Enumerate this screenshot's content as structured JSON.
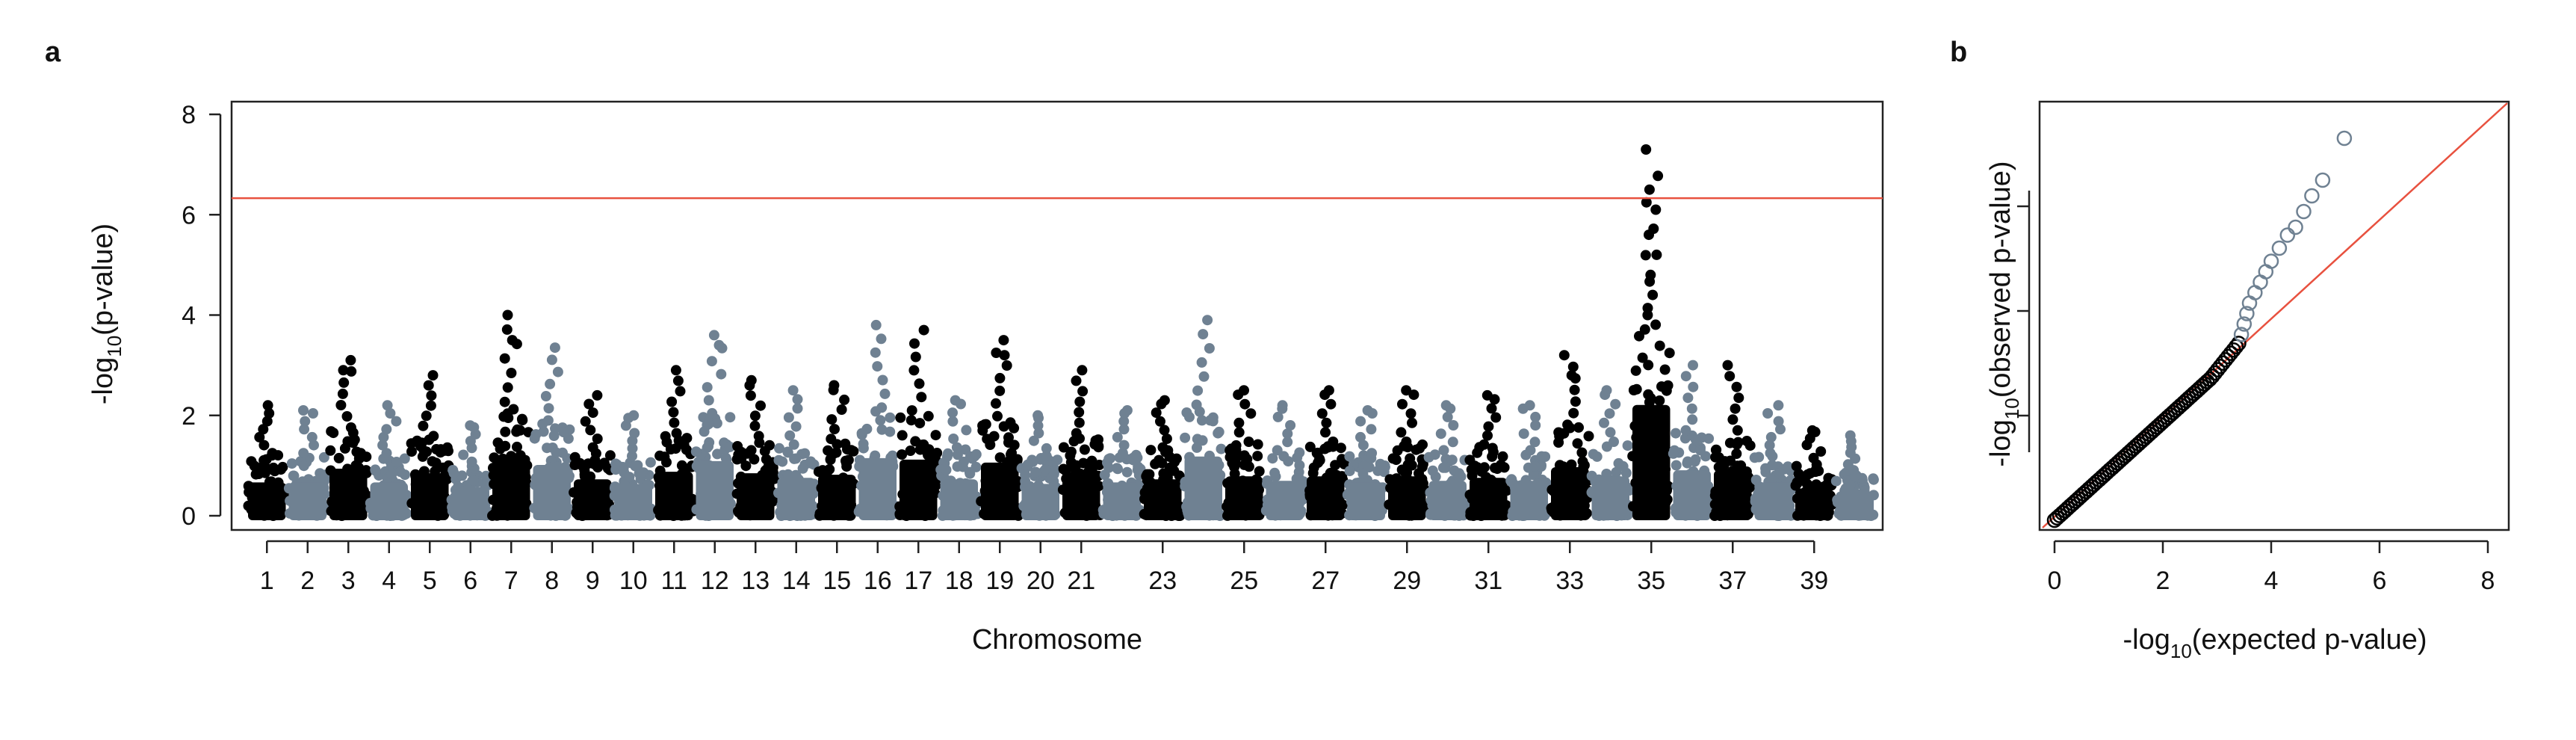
{
  "chart_data": [
    {
      "panel": "a",
      "type": "scatter",
      "subtype": "manhattan",
      "xlabel": "Chromosome",
      "ylabel_parts": [
        "-log",
        "10",
        "(p-value)"
      ],
      "ylim": [
        0,
        8
      ],
      "y_ticks": [
        0,
        2,
        4,
        6,
        8
      ],
      "threshold": 6.33,
      "threshold_color": "#e8513f",
      "series_colors": [
        "#000000",
        "#6f8192"
      ],
      "chromosomes": [
        {
          "chr": 1,
          "peak": 2.2,
          "top": [
            2.2
          ]
        },
        {
          "chr": 2,
          "peak": 2.2,
          "top": [
            2.1
          ]
        },
        {
          "chr": 3,
          "peak": 3.1,
          "top": [
            2.9,
            3.1
          ]
        },
        {
          "chr": 4,
          "peak": 2.2,
          "top": [
            2.2
          ]
        },
        {
          "chr": 5,
          "peak": 2.8,
          "top": [
            2.8
          ]
        },
        {
          "chr": 6,
          "peak": 1.9,
          "top": [
            1.8
          ]
        },
        {
          "chr": 7,
          "peak": 4.0,
          "top": [
            3.5,
            4.0
          ]
        },
        {
          "chr": 8,
          "peak": 3.35,
          "top": [
            3.35
          ]
        },
        {
          "chr": 9,
          "peak": 2.4,
          "top": [
            2.4
          ]
        },
        {
          "chr": 10,
          "peak": 2.1,
          "top": [
            2.0
          ]
        },
        {
          "chr": 11,
          "peak": 2.9,
          "top": [
            2.9
          ]
        },
        {
          "chr": 12,
          "peak": 3.6,
          "top": [
            3.6,
            3.4
          ]
        },
        {
          "chr": 13,
          "peak": 2.8,
          "top": [
            2.7
          ]
        },
        {
          "chr": 14,
          "peak": 2.5,
          "top": [
            2.5
          ]
        },
        {
          "chr": 15,
          "peak": 2.7,
          "top": [
            2.6
          ]
        },
        {
          "chr": 16,
          "peak": 3.8,
          "top": [
            3.8
          ]
        },
        {
          "chr": 17,
          "peak": 3.7,
          "top": [
            3.7
          ]
        },
        {
          "chr": 18,
          "peak": 2.4,
          "top": [
            2.3
          ]
        },
        {
          "chr": 19,
          "peak": 3.5,
          "top": [
            3.5,
            3.2
          ]
        },
        {
          "chr": 20,
          "peak": 2.1,
          "top": [
            2.0
          ]
        },
        {
          "chr": 21,
          "peak": 2.9,
          "top": [
            2.9
          ]
        },
        {
          "chr": 22,
          "peak": 2.2,
          "top": [
            2.1
          ]
        },
        {
          "chr": 23,
          "peak": 2.4,
          "top": [
            2.3
          ]
        },
        {
          "chr": 24,
          "peak": 3.9,
          "top": [
            3.9
          ]
        },
        {
          "chr": 25,
          "peak": 2.6,
          "top": [
            2.5
          ]
        },
        {
          "chr": 26,
          "peak": 2.3,
          "top": [
            2.2
          ]
        },
        {
          "chr": 27,
          "peak": 2.6,
          "top": [
            2.5
          ]
        },
        {
          "chr": 28,
          "peak": 2.2,
          "top": [
            2.1
          ]
        },
        {
          "chr": 29,
          "peak": 2.6,
          "top": [
            2.5
          ]
        },
        {
          "chr": 30,
          "peak": 2.3,
          "top": [
            2.2
          ]
        },
        {
          "chr": 31,
          "peak": 2.5,
          "top": [
            2.4
          ]
        },
        {
          "chr": 32,
          "peak": 2.3,
          "top": [
            2.2
          ]
        },
        {
          "chr": 33,
          "peak": 3.2,
          "top": [
            3.2,
            2.8
          ]
        },
        {
          "chr": 34,
          "peak": 2.6,
          "top": [
            2.5
          ]
        },
        {
          "chr": 35,
          "peak": 7.3,
          "top": [
            7.3,
            6.5,
            6.1,
            5.6,
            5.2,
            4.8,
            4.4,
            4.0
          ]
        },
        {
          "chr": 36,
          "peak": 3.0,
          "top": [
            3.0
          ]
        },
        {
          "chr": 37,
          "peak": 3.0,
          "top": [
            3.0
          ]
        },
        {
          "chr": 38,
          "peak": 2.2,
          "top": [
            2.2
          ]
        },
        {
          "chr": 39,
          "peak": 1.8,
          "top": [
            1.7
          ]
        },
        {
          "chr": 40,
          "peak": 1.6,
          "top": [
            1.6
          ]
        }
      ],
      "tick_labels": [
        {
          "chr": 1,
          "label": "1"
        },
        {
          "chr": 2,
          "label": "2"
        },
        {
          "chr": 3,
          "label": "3"
        },
        {
          "chr": 4,
          "label": "4"
        },
        {
          "chr": 5,
          "label": "5"
        },
        {
          "chr": 6,
          "label": "6"
        },
        {
          "chr": 7,
          "label": "7"
        },
        {
          "chr": 8,
          "label": "8"
        },
        {
          "chr": 9,
          "label": "9"
        },
        {
          "chr": 10,
          "label": "10"
        },
        {
          "chr": 11,
          "label": "11"
        },
        {
          "chr": 12,
          "label": "12"
        },
        {
          "chr": 13,
          "label": "13"
        },
        {
          "chr": 14,
          "label": "14"
        },
        {
          "chr": 15,
          "label": "15"
        },
        {
          "chr": 16,
          "label": "16"
        },
        {
          "chr": 17,
          "label": "17"
        },
        {
          "chr": 18,
          "label": "18"
        },
        {
          "chr": 19,
          "label": "19"
        },
        {
          "chr": 20,
          "label": "20"
        },
        {
          "chr": 21,
          "label": "21"
        },
        {
          "chr": 23,
          "label": "23"
        },
        {
          "chr": 25,
          "label": "25"
        },
        {
          "chr": 27,
          "label": "27"
        },
        {
          "chr": 29,
          "label": "29"
        },
        {
          "chr": 31,
          "label": "31"
        },
        {
          "chr": 33,
          "label": "33"
        },
        {
          "chr": 35,
          "label": "35"
        },
        {
          "chr": 37,
          "label": "37"
        },
        {
          "chr": 39,
          "label": "39"
        }
      ]
    },
    {
      "panel": "b",
      "type": "scatter",
      "subtype": "qq",
      "xlabel_parts": [
        "-log",
        "10",
        "(expected p-value)"
      ],
      "ylabel_parts": [
        "-log",
        "10",
        "(observed p-value)"
      ],
      "xlim": [
        0,
        8
      ],
      "ylim": [
        0,
        8
      ],
      "x_ticks": [
        0,
        2,
        4,
        6,
        8
      ],
      "y_ticks": [
        2,
        4,
        6
      ],
      "reference_line": "y = x",
      "reference_color": "#e8513f",
      "body": {
        "x_start": 0,
        "x_end": 3.4,
        "y_end": 3.2,
        "color": "#000000"
      },
      "tail_points": [
        {
          "x": 3.45,
          "y": 3.55
        },
        {
          "x": 3.5,
          "y": 3.75
        },
        {
          "x": 3.55,
          "y": 3.95
        },
        {
          "x": 3.6,
          "y": 4.15
        },
        {
          "x": 3.7,
          "y": 4.35
        },
        {
          "x": 3.8,
          "y": 4.55
        },
        {
          "x": 3.9,
          "y": 4.75
        },
        {
          "x": 4.0,
          "y": 4.95
        },
        {
          "x": 4.15,
          "y": 5.2
        },
        {
          "x": 4.3,
          "y": 5.45
        },
        {
          "x": 4.45,
          "y": 5.6
        },
        {
          "x": 4.6,
          "y": 5.9
        },
        {
          "x": 4.75,
          "y": 6.2
        },
        {
          "x": 4.95,
          "y": 6.5
        },
        {
          "x": 5.35,
          "y": 7.3
        }
      ],
      "tail_color": "#6f8192"
    }
  ],
  "panel_letters": {
    "a": "a",
    "b": "b"
  }
}
